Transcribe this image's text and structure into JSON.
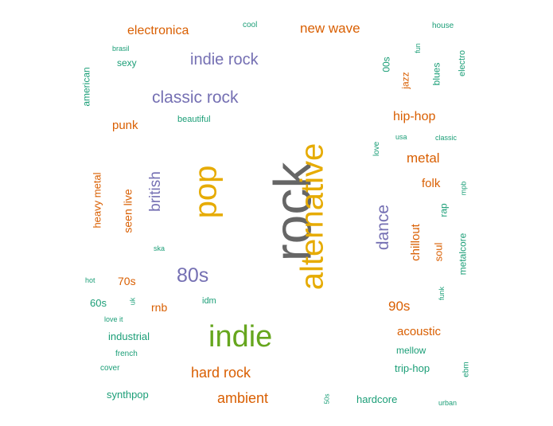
{
  "colors": {
    "green": "#1b9e77",
    "orange": "#d95f02",
    "purple": "#7570b3",
    "lime": "#66a61e",
    "gold": "#e6ab02",
    "gray": "#666666"
  },
  "words": [
    {
      "text": "rock",
      "color": "gray"
    },
    {
      "text": "alternative",
      "color": "gold"
    },
    {
      "text": "pop",
      "color": "gold"
    },
    {
      "text": "indie",
      "color": "lime"
    },
    {
      "text": "80s",
      "color": "purple"
    },
    {
      "text": "classic rock",
      "color": "purple"
    },
    {
      "text": "indie rock",
      "color": "purple"
    },
    {
      "text": "dance",
      "color": "purple"
    },
    {
      "text": "british",
      "color": "purple"
    },
    {
      "text": "new wave",
      "color": "orange"
    },
    {
      "text": "electronica",
      "color": "orange"
    },
    {
      "text": "hard rock",
      "color": "orange"
    },
    {
      "text": "ambient",
      "color": "orange"
    },
    {
      "text": "hip-hop",
      "color": "orange"
    },
    {
      "text": "metal",
      "color": "orange"
    },
    {
      "text": "90s",
      "color": "orange"
    },
    {
      "text": "chillout",
      "color": "orange"
    },
    {
      "text": "acoustic",
      "color": "orange"
    },
    {
      "text": "folk",
      "color": "orange"
    },
    {
      "text": "seen live",
      "color": "orange"
    },
    {
      "text": "punk",
      "color": "orange"
    },
    {
      "text": "heavy metal",
      "color": "orange"
    },
    {
      "text": "70s",
      "color": "orange"
    },
    {
      "text": "rnb",
      "color": "orange"
    },
    {
      "text": "soul",
      "color": "orange"
    },
    {
      "text": "jazz",
      "color": "orange"
    },
    {
      "text": "industrial",
      "color": "green"
    },
    {
      "text": "60s",
      "color": "green"
    },
    {
      "text": "synthpop",
      "color": "green"
    },
    {
      "text": "hardcore",
      "color": "green"
    },
    {
      "text": "trip-hop",
      "color": "green"
    },
    {
      "text": "mellow",
      "color": "green"
    },
    {
      "text": "sexy",
      "color": "green"
    },
    {
      "text": "american",
      "color": "green"
    },
    {
      "text": "beautiful",
      "color": "green"
    },
    {
      "text": "cool",
      "color": "green"
    },
    {
      "text": "house",
      "color": "green"
    },
    {
      "text": "brasil",
      "color": "green"
    },
    {
      "text": "00s",
      "color": "green"
    },
    {
      "text": "fun",
      "color": "green"
    },
    {
      "text": "blues",
      "color": "green"
    },
    {
      "text": "electro",
      "color": "green"
    },
    {
      "text": "usa",
      "color": "green"
    },
    {
      "text": "classic",
      "color": "green"
    },
    {
      "text": "love",
      "color": "green"
    },
    {
      "text": "mpb",
      "color": "green"
    },
    {
      "text": "rap",
      "color": "green"
    },
    {
      "text": "metalcore",
      "color": "green"
    },
    {
      "text": "ska",
      "color": "green"
    },
    {
      "text": "hot",
      "color": "green"
    },
    {
      "text": "uk",
      "color": "green"
    },
    {
      "text": "idm",
      "color": "green"
    },
    {
      "text": "funk",
      "color": "green"
    },
    {
      "text": "love it",
      "color": "green"
    },
    {
      "text": "french",
      "color": "green"
    },
    {
      "text": "cover",
      "color": "green"
    },
    {
      "text": "ebm",
      "color": "green"
    },
    {
      "text": "50s",
      "color": "green"
    },
    {
      "text": "urban",
      "color": "green"
    }
  ]
}
